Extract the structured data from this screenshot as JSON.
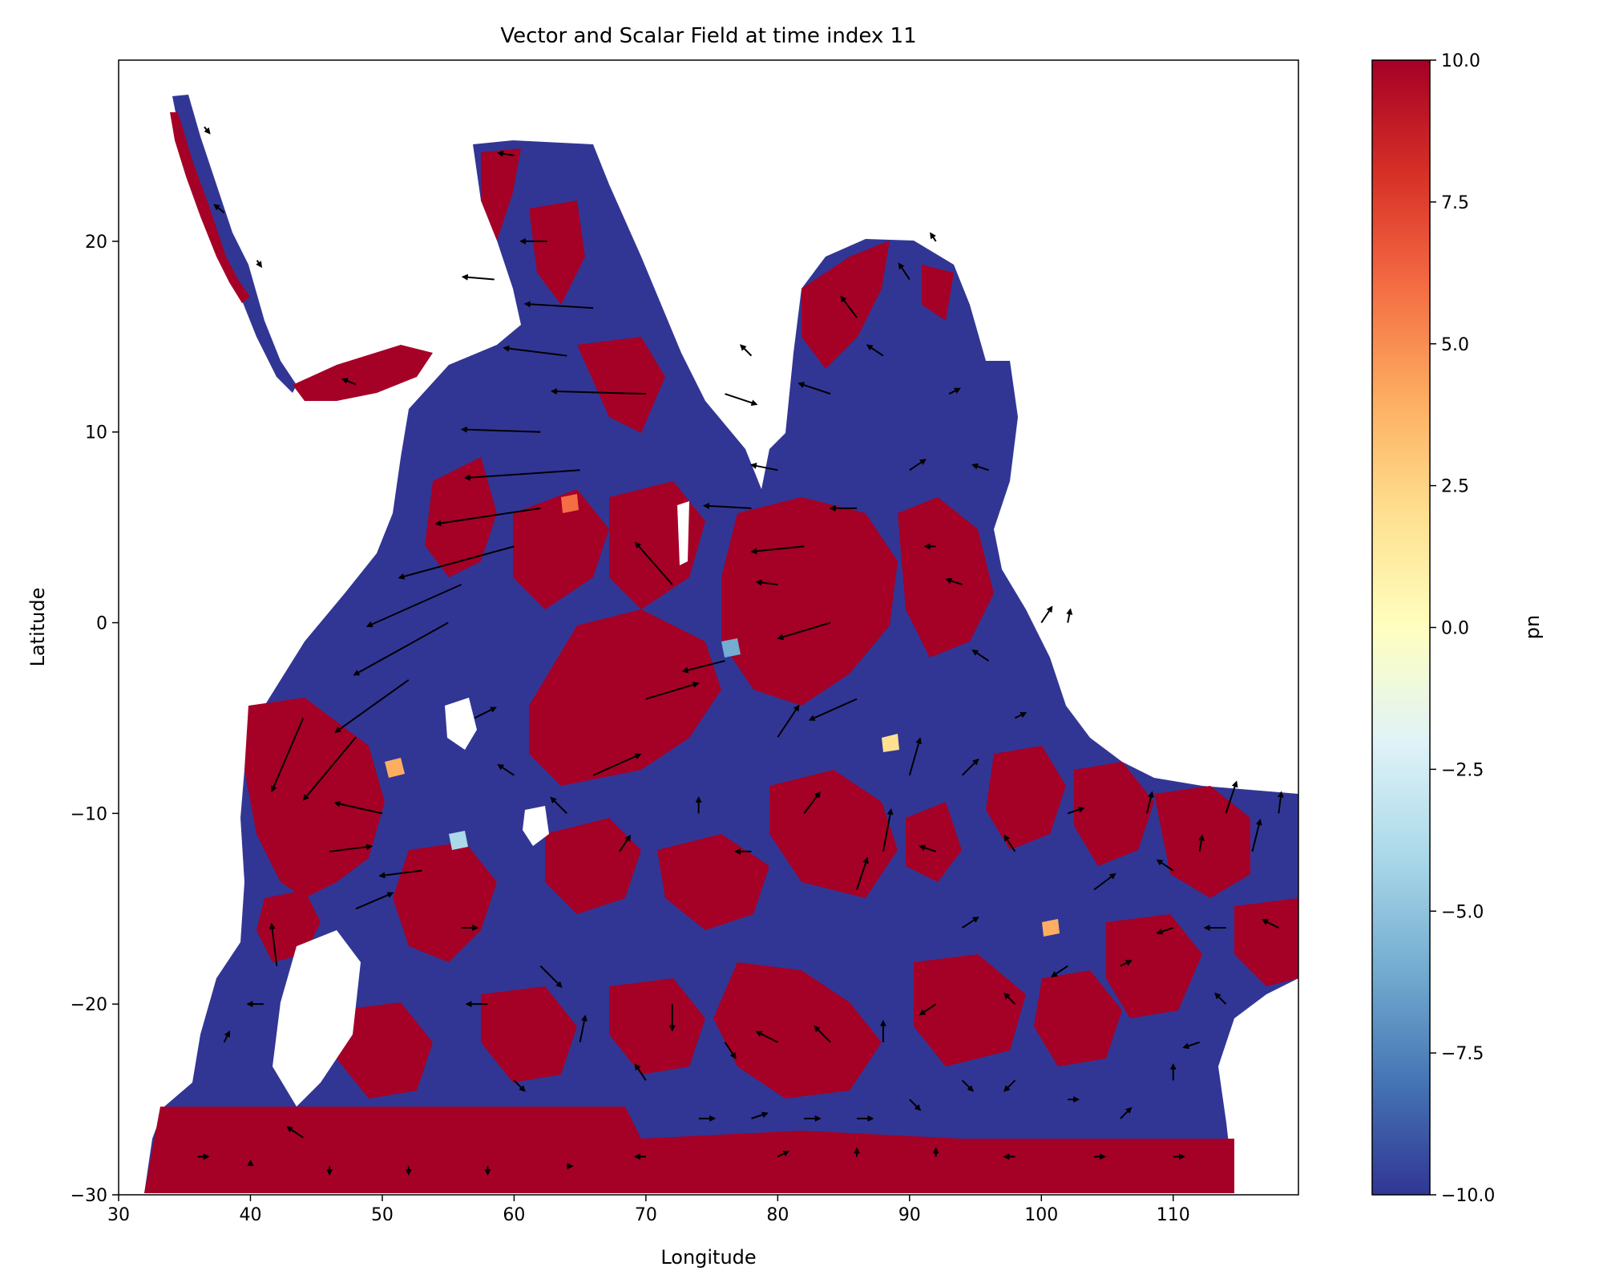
{
  "chart_data": {
    "type": "heatmap",
    "overlay": "quiver",
    "title": "Vector and Scalar Field at time index 11",
    "xlabel": "Longitude",
    "ylabel": "Latitude",
    "xlim": [
      30,
      119.5
    ],
    "ylim": [
      -30,
      29.5
    ],
    "xticks": [
      30,
      40,
      50,
      60,
      70,
      80,
      90,
      100,
      110
    ],
    "yticks": [
      -30,
      -20,
      -10,
      0,
      10,
      20
    ],
    "grid": false,
    "colormap": "RdYlBu_r",
    "colorbar": {
      "label": "pn",
      "range": [
        -10,
        10
      ],
      "ticks": [
        -10.0,
        -7.5,
        -5.0,
        -2.5,
        0.0,
        2.5,
        5.0,
        7.5,
        10.0
      ],
      "tick_labels": [
        "−10.0",
        "−7.5",
        "−5.0",
        "−2.5",
        "0.0",
        "2.5",
        "5.0",
        "7.5",
        "10.0"
      ],
      "stops": [
        "#313695",
        "#4575b4",
        "#74add1",
        "#abd9e9",
        "#e0f3f8",
        "#ffffbf",
        "#fee090",
        "#fdae61",
        "#f46d43",
        "#d73027",
        "#a50026"
      ]
    },
    "colors": {
      "low": "#313695",
      "high": "#a50026",
      "arrow": "#000000"
    },
    "vectors": [
      {
        "lon": 36.5,
        "lat": 26.0,
        "u": 1.0,
        "v": -1.2
      },
      {
        "lon": 38.0,
        "lat": 21.5,
        "u": -1.8,
        "v": 1.5
      },
      {
        "lon": 40.5,
        "lat": 19.0,
        "u": 0.8,
        "v": -1.2
      },
      {
        "lon": 48.0,
        "lat": 12.5,
        "u": -2.5,
        "v": 1.0
      },
      {
        "lon": 58.5,
        "lat": 18.0,
        "u": -6.0,
        "v": 0.5
      },
      {
        "lon": 62.5,
        "lat": 20.0,
        "u": -5.0,
        "v": 0.0
      },
      {
        "lon": 60.0,
        "lat": 24.5,
        "u": -3.0,
        "v": 0.5
      },
      {
        "lon": 66.0,
        "lat": 16.5,
        "u": -13.0,
        "v": 0.8
      },
      {
        "lon": 64.0,
        "lat": 14.0,
        "u": -12.0,
        "v": 1.5
      },
      {
        "lon": 70.0,
        "lat": 12.0,
        "u": -18.0,
        "v": 0.5
      },
      {
        "lon": 62.0,
        "lat": 10.0,
        "u": -15.0,
        "v": 0.5
      },
      {
        "lon": 65.0,
        "lat": 8.0,
        "u": -22.0,
        "v": -1.5
      },
      {
        "lon": 62.0,
        "lat": 6.0,
        "u": -20.0,
        "v": -3.0
      },
      {
        "lon": 60.0,
        "lat": 4.0,
        "u": -22.0,
        "v": -6.0
      },
      {
        "lon": 56.0,
        "lat": 2.0,
        "u": -18.0,
        "v": -8.0
      },
      {
        "lon": 55.0,
        "lat": 0.0,
        "u": -18.0,
        "v": -10.0
      },
      {
        "lon": 52.0,
        "lat": -3.0,
        "u": -14.0,
        "v": -10.0
      },
      {
        "lon": 48.0,
        "lat": -6.0,
        "u": -10.0,
        "v": -12.0
      },
      {
        "lon": 44.0,
        "lat": -5.0,
        "u": -6.0,
        "v": -14.0
      },
      {
        "lon": 46.0,
        "lat": -12.0,
        "u": 8.0,
        "v": 1.0
      },
      {
        "lon": 48.0,
        "lat": -15.0,
        "u": 7.0,
        "v": 3.0
      },
      {
        "lon": 53.0,
        "lat": -13.0,
        "u": -8.0,
        "v": -1.0
      },
      {
        "lon": 50.0,
        "lat": -10.0,
        "u": -9.0,
        "v": 2.0
      },
      {
        "lon": 42.0,
        "lat": -18.0,
        "u": -1.0,
        "v": 8.0
      },
      {
        "lon": 41.0,
        "lat": -20.0,
        "u": -3.0,
        "v": 0.0
      },
      {
        "lon": 38.0,
        "lat": -22.0,
        "u": 1.0,
        "v": 2.0
      },
      {
        "lon": 44.0,
        "lat": -27.0,
        "u": -3.0,
        "v": 2.0
      },
      {
        "lon": 36.0,
        "lat": -28.0,
        "u": 2.0,
        "v": 0.0
      },
      {
        "lon": 40.0,
        "lat": -28.5,
        "u": 0.0,
        "v": 1.0
      },
      {
        "lon": 46.0,
        "lat": -28.5,
        "u": 0.0,
        "v": -1.5
      },
      {
        "lon": 52.0,
        "lat": -28.5,
        "u": 0.0,
        "v": -1.5
      },
      {
        "lon": 58.0,
        "lat": -28.5,
        "u": 0.0,
        "v": -1.5
      },
      {
        "lon": 64.0,
        "lat": -28.5,
        "u": 1.0,
        "v": 0.0
      },
      {
        "lon": 56.0,
        "lat": -16.0,
        "u": 3.0,
        "v": 0.0
      },
      {
        "lon": 58.0,
        "lat": -20.0,
        "u": -4.0,
        "v": 0.0
      },
      {
        "lon": 60.0,
        "lat": -24.0,
        "u": 2.0,
        "v": -2.0
      },
      {
        "lon": 62.0,
        "lat": -18.0,
        "u": 4.0,
        "v": -4.0
      },
      {
        "lon": 65.0,
        "lat": -22.0,
        "u": 1.0,
        "v": 5.0
      },
      {
        "lon": 66.0,
        "lat": -8.0,
        "u": 9.0,
        "v": 4.0
      },
      {
        "lon": 70.0,
        "lat": -4.0,
        "u": 10.0,
        "v": 3.0
      },
      {
        "lon": 72.0,
        "lat": 2.0,
        "u": -7.0,
        "v": 8.0
      },
      {
        "lon": 76.0,
        "lat": -2.0,
        "u": -8.0,
        "v": -2.0
      },
      {
        "lon": 78.0,
        "lat": 6.0,
        "u": -9.0,
        "v": 0.5
      },
      {
        "lon": 80.0,
        "lat": 8.0,
        "u": -5.0,
        "v": 1.0
      },
      {
        "lon": 82.0,
        "lat": 4.0,
        "u": -10.0,
        "v": -1.0
      },
      {
        "lon": 84.0,
        "lat": 0.0,
        "u": -10.0,
        "v": -3.0
      },
      {
        "lon": 86.0,
        "lat": -4.0,
        "u": -9.0,
        "v": -4.0
      },
      {
        "lon": 80.0,
        "lat": -6.0,
        "u": 4.0,
        "v": 6.0
      },
      {
        "lon": 74.0,
        "lat": -10.0,
        "u": 0.0,
        "v": 3.0
      },
      {
        "lon": 78.0,
        "lat": -12.0,
        "u": -3.0,
        "v": 0.0
      },
      {
        "lon": 82.0,
        "lat": -10.0,
        "u": 3.0,
        "v": 4.0
      },
      {
        "lon": 86.0,
        "lat": -14.0,
        "u": 2.0,
        "v": 6.0
      },
      {
        "lon": 88.0,
        "lat": -12.0,
        "u": 1.5,
        "v": 8.0
      },
      {
        "lon": 90.0,
        "lat": -8.0,
        "u": 2.0,
        "v": 7.0
      },
      {
        "lon": 92.0,
        "lat": -12.0,
        "u": -3.0,
        "v": 1.0
      },
      {
        "lon": 94.0,
        "lat": -16.0,
        "u": 3.0,
        "v": 2.0
      },
      {
        "lon": 96.0,
        "lat": -2.0,
        "u": -3.0,
        "v": 2.0
      },
      {
        "lon": 98.0,
        "lat": -5.0,
        "u": 2.0,
        "v": 1.0
      },
      {
        "lon": 100.0,
        "lat": 0.0,
        "u": 2.0,
        "v": 3.0
      },
      {
        "lon": 102.0,
        "lat": 0.0,
        "u": 0.5,
        "v": 2.5
      },
      {
        "lon": 94.0,
        "lat": 2.0,
        "u": -3.0,
        "v": 1.0
      },
      {
        "lon": 88.0,
        "lat": 14.0,
        "u": -3.0,
        "v": 2.0
      },
      {
        "lon": 84.0,
        "lat": 12.0,
        "u": -6.0,
        "v": 2.0
      },
      {
        "lon": 86.0,
        "lat": 16.0,
        "u": -3.0,
        "v": 4.0
      },
      {
        "lon": 90.0,
        "lat": 18.0,
        "u": -2.0,
        "v": 3.0
      },
      {
        "lon": 92.0,
        "lat": 20.0,
        "u": -1.0,
        "v": 1.5
      },
      {
        "lon": 93.0,
        "lat": 12.0,
        "u": 2.0,
        "v": 1.0
      },
      {
        "lon": 96.0,
        "lat": 8.0,
        "u": -3.0,
        "v": 1.0
      },
      {
        "lon": 90.0,
        "lat": 8.0,
        "u": 3.0,
        "v": 2.0
      },
      {
        "lon": 86.0,
        "lat": 6.0,
        "u": -5.0,
        "v": 0.0
      },
      {
        "lon": 80.0,
        "lat": 2.0,
        "u": -4.0,
        "v": 0.5
      },
      {
        "lon": 76.0,
        "lat": 12.0,
        "u": 6.0,
        "v": -2.0
      },
      {
        "lon": 78.0,
        "lat": 14.0,
        "u": -2.0,
        "v": 2.0
      },
      {
        "lon": 92.0,
        "lat": 4.0,
        "u": -2.0,
        "v": 0.0
      },
      {
        "lon": 94.0,
        "lat": -8.0,
        "u": 3.0,
        "v": 3.0
      },
      {
        "lon": 98.0,
        "lat": -12.0,
        "u": -2.0,
        "v": 3.0
      },
      {
        "lon": 102.0,
        "lat": -10.0,
        "u": 3.0,
        "v": 1.0
      },
      {
        "lon": 104.0,
        "lat": -14.0,
        "u": 4.0,
        "v": 3.0
      },
      {
        "lon": 108.0,
        "lat": -10.0,
        "u": 1.0,
        "v": 4.0
      },
      {
        "lon": 110.0,
        "lat": -13.0,
        "u": -3.0,
        "v": 2.0
      },
      {
        "lon": 112.0,
        "lat": -12.0,
        "u": 0.5,
        "v": 3.0
      },
      {
        "lon": 114.0,
        "lat": -10.0,
        "u": 2.0,
        "v": 6.0
      },
      {
        "lon": 116.0,
        "lat": -12.0,
        "u": 1.5,
        "v": 6.0
      },
      {
        "lon": 118.0,
        "lat": -10.0,
        "u": 0.5,
        "v": 4.0
      },
      {
        "lon": 118.0,
        "lat": -16.0,
        "u": -3.0,
        "v": 1.5
      },
      {
        "lon": 114.0,
        "lat": -16.0,
        "u": -4.0,
        "v": 0.0
      },
      {
        "lon": 110.0,
        "lat": -16.0,
        "u": -3.0,
        "v": -1.0
      },
      {
        "lon": 106.0,
        "lat": -18.0,
        "u": 2.0,
        "v": 1.0
      },
      {
        "lon": 102.0,
        "lat": -18.0,
        "u": -3.0,
        "v": -2.0
      },
      {
        "lon": 98.0,
        "lat": -20.0,
        "u": -2.0,
        "v": 2.0
      },
      {
        "lon": 92.0,
        "lat": -20.0,
        "u": -3.0,
        "v": -2.0
      },
      {
        "lon": 88.0,
        "lat": -22.0,
        "u": 0.0,
        "v": 4.0
      },
      {
        "lon": 84.0,
        "lat": -22.0,
        "u": -3.0,
        "v": 3.0
      },
      {
        "lon": 80.0,
        "lat": -22.0,
        "u": -4.0,
        "v": 2.0
      },
      {
        "lon": 76.0,
        "lat": -22.0,
        "u": 2.0,
        "v": -3.0
      },
      {
        "lon": 72.0,
        "lat": -20.0,
        "u": 0.0,
        "v": -5.0
      },
      {
        "lon": 70.0,
        "lat": -24.0,
        "u": -2.0,
        "v": 3.0
      },
      {
        "lon": 74.0,
        "lat": -26.0,
        "u": 3.0,
        "v": 0.0
      },
      {
        "lon": 78.0,
        "lat": -26.0,
        "u": 3.0,
        "v": 1.0
      },
      {
        "lon": 82.0,
        "lat": -26.0,
        "u": 3.0,
        "v": 0.0
      },
      {
        "lon": 86.0,
        "lat": -26.0,
        "u": 3.0,
        "v": 0.0
      },
      {
        "lon": 90.0,
        "lat": -25.0,
        "u": 2.0,
        "v": -2.0
      },
      {
        "lon": 94.0,
        "lat": -24.0,
        "u": 2.0,
        "v": -2.0
      },
      {
        "lon": 98.0,
        "lat": -24.0,
        "u": -2.0,
        "v": -2.0
      },
      {
        "lon": 102.0,
        "lat": -25.0,
        "u": 2.0,
        "v": 0.0
      },
      {
        "lon": 106.0,
        "lat": -26.0,
        "u": 2.0,
        "v": 2.0
      },
      {
        "lon": 110.0,
        "lat": -24.0,
        "u": 0.0,
        "v": 3.0
      },
      {
        "lon": 112.0,
        "lat": -22.0,
        "u": -3.0,
        "v": -1.0
      },
      {
        "lon": 114.0,
        "lat": -20.0,
        "u": -2.0,
        "v": 2.0
      },
      {
        "lon": 110.0,
        "lat": -28.0,
        "u": 2.0,
        "v": 0.0
      },
      {
        "lon": 104.0,
        "lat": -28.0,
        "u": 2.0,
        "v": 0.0
      },
      {
        "lon": 98.0,
        "lat": -28.0,
        "u": -2.0,
        "v": 0.0
      },
      {
        "lon": 92.0,
        "lat": -28.0,
        "u": 0.0,
        "v": 1.5
      },
      {
        "lon": 86.0,
        "lat": -28.0,
        "u": 0.0,
        "v": 1.5
      },
      {
        "lon": 80.0,
        "lat": -28.0,
        "u": 2.0,
        "v": 1.0
      },
      {
        "lon": 70.0,
        "lat": -28.0,
        "u": -2.0,
        "v": 0.0
      },
      {
        "lon": 68.0,
        "lat": -12.0,
        "u": 2.0,
        "v": 3.0
      },
      {
        "lon": 64.0,
        "lat": -10.0,
        "u": -3.0,
        "v": 3.0
      },
      {
        "lon": 60.0,
        "lat": -8.0,
        "u": -3.0,
        "v": 2.0
      },
      {
        "lon": 57.0,
        "lat": -5.0,
        "u": 4.0,
        "v": 2.0
      }
    ]
  }
}
